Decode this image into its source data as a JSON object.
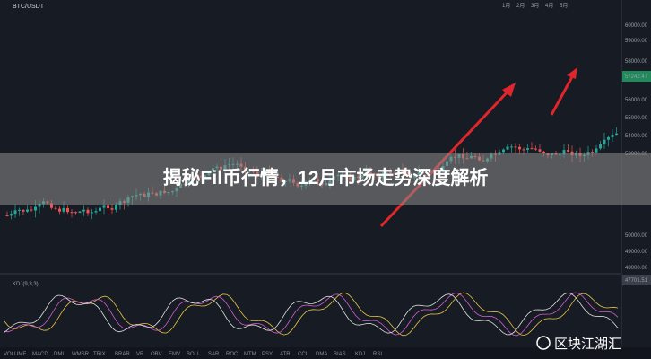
{
  "header": {
    "pair": "BTC/USDT"
  },
  "overlay": {
    "title": "揭秘Fil币行情，12月市场走势深度解析"
  },
  "watermark": "区块江湖汇",
  "price_axis": [
    "60000.00",
    "59000.00",
    "58000.00",
    "57242.47",
    "56000.00",
    "55000.00",
    "54000.00",
    "53000.00",
    "50000.00",
    "49000.00",
    "48000.00",
    "47701.51"
  ],
  "time_axis": [
    "1月",
    "2月",
    "3月",
    "4月",
    "5月"
  ],
  "indicator": {
    "label": "KDJ(9,3,3)"
  },
  "tabs": [
    "VOLUME",
    "MACD",
    "DMI",
    "WMSR",
    "TRIX",
    "BRAR",
    "VR",
    "OBV",
    "EMV",
    "BOLL",
    "SAR",
    "ROC",
    "MTM",
    "PSY",
    "ATR",
    "CCI",
    "DMA",
    "BIAS",
    "KDJ",
    "RSI"
  ]
}
